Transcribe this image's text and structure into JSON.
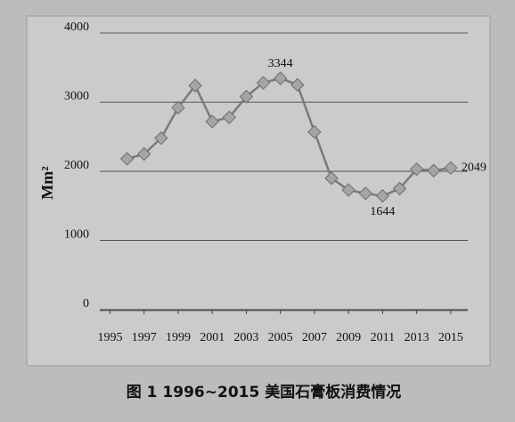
{
  "chart_data": {
    "type": "line",
    "caption": "图 1   1996~2015 美国石膏板消费情况",
    "ylabel": "Mm²",
    "x": [
      1996,
      1997,
      1998,
      1999,
      2000,
      2001,
      2002,
      2003,
      2004,
      2005,
      2006,
      2007,
      2008,
      2009,
      2010,
      2011,
      2012,
      2013,
      2014,
      2015
    ],
    "series": [
      {
        "color": "#7a7a7a",
        "values": [
          2180,
          2250,
          2480,
          2920,
          3240,
          2720,
          2780,
          3080,
          3280,
          3344,
          3250,
          2570,
          1900,
          1730,
          1680,
          1644,
          1750,
          2030,
          2010,
          2049
        ]
      }
    ],
    "xlim": [
      1994.4,
      2016
    ],
    "xticks": [
      1995,
      1997,
      1999,
      2001,
      2003,
      2005,
      2007,
      2009,
      2011,
      2013,
      2015
    ],
    "ylim": [
      0,
      4000
    ],
    "yticks": [
      0,
      1000,
      2000,
      3000,
      4000
    ],
    "grid": true
  }
}
